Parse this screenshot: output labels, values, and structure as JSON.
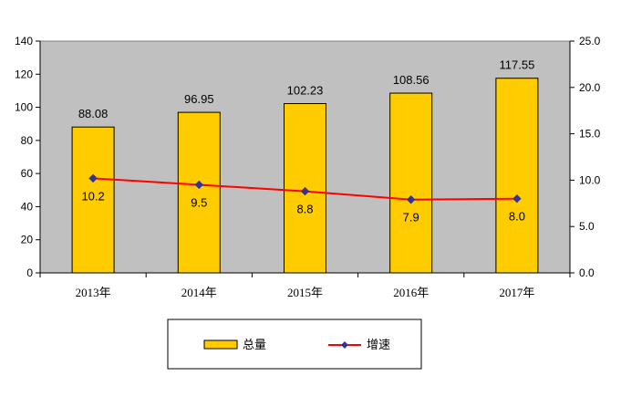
{
  "chart_data": {
    "type": "bar",
    "categories": [
      "2013年",
      "2014年",
      "2015年",
      "2016年",
      "2017年"
    ],
    "series": [
      {
        "name": "总量",
        "type": "bar",
        "axis": "left",
        "values": [
          88.08,
          96.95,
          102.23,
          108.56,
          117.55
        ],
        "labels": [
          "88.08",
          "96.95",
          "102.23",
          "108.56",
          "117.55"
        ]
      },
      {
        "name": "增速",
        "type": "line",
        "axis": "right",
        "values": [
          10.2,
          9.5,
          8.8,
          7.9,
          8.0
        ],
        "labels": [
          "10.2",
          "9.5",
          "8.8",
          "7.9",
          "8.0"
        ]
      }
    ],
    "y_left": {
      "range": [
        0,
        140
      ],
      "ticks": [
        "0",
        "20",
        "40",
        "60",
        "80",
        "100",
        "120",
        "140"
      ]
    },
    "y_right": {
      "range": [
        0,
        25
      ],
      "ticks": [
        "0.0",
        "5.0",
        "10.0",
        "15.0",
        "20.0",
        "25.0"
      ]
    },
    "legend": {
      "placement": "bottom",
      "items": [
        "总量",
        "增速"
      ]
    },
    "grid": false,
    "colors": {
      "bar_fill": "#FFCC00",
      "bar_stroke": "#000000",
      "line": "#FF0000",
      "marker": "#333399",
      "plot_bg": "#C0C0C0"
    }
  }
}
